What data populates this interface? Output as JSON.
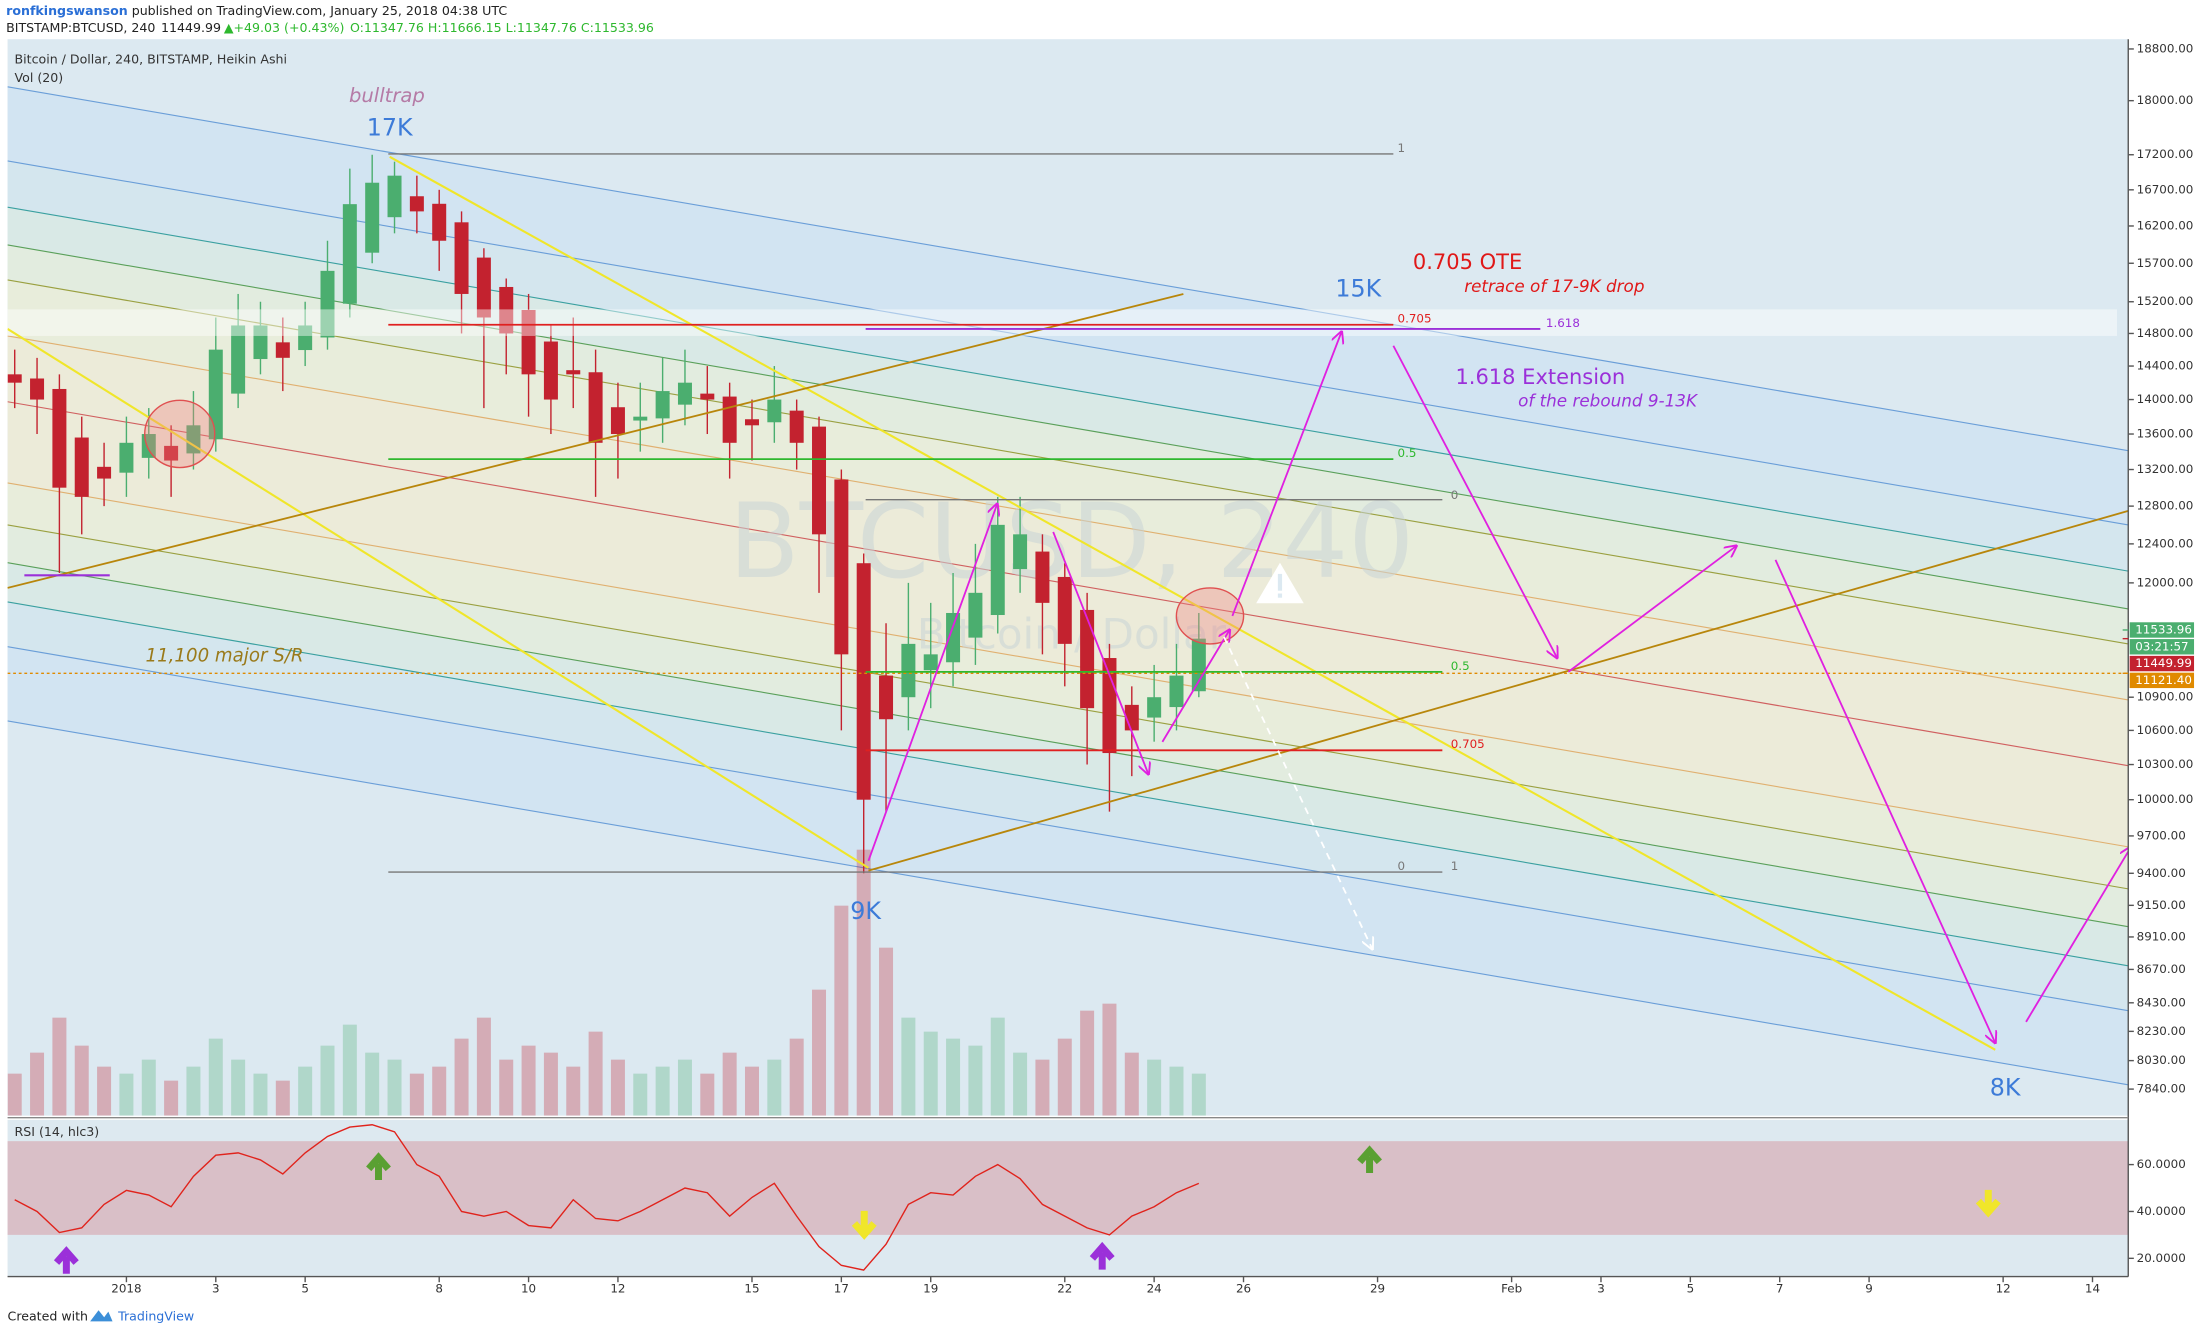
{
  "header": {
    "author": "ronfkingswanson",
    "published": " published on TradingView.com, January 25, 2018 04:38 UTC",
    "symbol": "BITSTAMP:BTCUSD, 240",
    "last": "11449.99",
    "arrow": "▲",
    "change": "+49.03 (+0.43%)",
    "ohlc": "O:11347.76 H:11666.15 L:11347.76 C:11533.96"
  },
  "legend": {
    "main": "Bitcoin / Dollar, 240, BITSTAMP, Heikin Ashi",
    "volume": "Vol (20)",
    "rsi": "RSI (14, hlc3)"
  },
  "watermark": {
    "symbol": "BTCUSD, 240",
    "name": "Bitcoin / Dollar"
  },
  "annotations": {
    "bulltrap": "bulltrap",
    "k17": "17K",
    "k15": "15K",
    "k9": "9K",
    "k8": "8K",
    "ote": "0.705 OTE",
    "ote_note": "retrace of 17-9K drop",
    "ext": "1.618 Extension",
    "ext_note": "of the rebound 9-13K",
    "sr": "11,100 major S/R"
  },
  "fib_labels": {
    "top_1": "1",
    "top_705": "0.705",
    "ext_1618": "1.618",
    "top_05": "0.5",
    "mid_0": "0",
    "mid_05": "0.5",
    "mid_705": "0.705",
    "low_0": "0",
    "low_1": "1"
  },
  "footer": {
    "created": "Created with",
    "brand": "TradingView"
  },
  "chart_data": {
    "type": "candlestick",
    "log_scale": true,
    "colors": {
      "up": "#4bae6f",
      "down": "#c3222f",
      "rsi": "#e0231c"
    },
    "x": [
      -2.5,
      -2,
      -1.5,
      -1,
      -0.5,
      0,
      0.5,
      1,
      1.5,
      2,
      2.5,
      3,
      3.5,
      4,
      4.5,
      5,
      5.5,
      6,
      6.5,
      7,
      7.5,
      8,
      8.5,
      9,
      9.5,
      10,
      10.5,
      11,
      11.5,
      12,
      12.5,
      13,
      13.5,
      14,
      14.5,
      15,
      15.5,
      16,
      16.5,
      17,
      17.5,
      18,
      18.5,
      19,
      19.5,
      20,
      20.5,
      21,
      21.5,
      22,
      22.5,
      23,
      23.5,
      24
    ],
    "open": [
      14300,
      14250,
      14125,
      13560,
      13230,
      13165,
      13330,
      13465,
      13380,
      13540,
      14070,
      14485,
      14690,
      14595,
      14750,
      15175,
      15840,
      16320,
      16610,
      16505,
      16250,
      15775,
      15390,
      15095,
      14700,
      14350,
      14325,
      13910,
      13755,
      13780,
      13940,
      14070,
      14035,
      13770,
      13735,
      13870,
      13685,
      13090,
      12200,
      11100,
      10900,
      11150,
      11225,
      11460,
      11680,
      12140,
      12320,
      12060,
      11730,
      11265,
      10830,
      10715,
      10810,
      10955
    ],
    "high": [
      14600,
      14500,
      14300,
      13800,
      13500,
      13800,
      13900,
      13700,
      14100,
      15000,
      15300,
      15200,
      15000,
      15200,
      16000,
      17000,
      17200,
      17100,
      16900,
      16700,
      16400,
      15900,
      15500,
      15300,
      14900,
      15000,
      14600,
      14200,
      14200,
      14500,
      14600,
      14400,
      14200,
      14000,
      14400,
      14000,
      13800,
      13200,
      12300,
      11600,
      12000,
      11800,
      12100,
      12400,
      12900,
      12900,
      12500,
      12200,
      11900,
      11400,
      11000,
      11200,
      11400,
      11700
    ],
    "low": [
      13900,
      13600,
      12100,
      12500,
      12800,
      12900,
      13100,
      12900,
      13200,
      13400,
      13900,
      14300,
      14100,
      14400,
      14600,
      15000,
      15700,
      16100,
      16100,
      15600,
      14800,
      13900,
      14300,
      13800,
      13600,
      13900,
      12900,
      13100,
      13400,
      13500,
      13700,
      13600,
      13100,
      13300,
      13500,
      13200,
      11900,
      10600,
      9400,
      9900,
      10600,
      10800,
      11000,
      11200,
      11500,
      11900,
      11300,
      11000,
      10300,
      9900,
      10200,
      10500,
      10600,
      10900
    ],
    "close": [
      14200,
      14000,
      13000,
      12900,
      13100,
      13500,
      13600,
      13300,
      13700,
      14600,
      14900,
      14900,
      14500,
      14900,
      15600,
      16500,
      16800,
      16900,
      16400,
      16000,
      15300,
      15000,
      14800,
      14300,
      14000,
      14300,
      13500,
      13600,
      13800,
      14100,
      14200,
      14000,
      13500,
      13700,
      14000,
      13500,
      12500,
      11300,
      10000,
      10700,
      11400,
      11300,
      11700,
      11900,
      12600,
      12500,
      11800,
      11400,
      10800,
      10400,
      10600,
      10900,
      11100,
      11450
    ],
    "volume": [
      30,
      45,
      70,
      50,
      35,
      30,
      40,
      25,
      35,
      55,
      40,
      30,
      25,
      35,
      50,
      65,
      45,
      40,
      30,
      35,
      55,
      70,
      40,
      50,
      45,
      35,
      60,
      40,
      30,
      35,
      40,
      30,
      45,
      35,
      40,
      55,
      90,
      150,
      190,
      120,
      70,
      60,
      55,
      50,
      70,
      45,
      40,
      55,
      75,
      80,
      45,
      40,
      35,
      30
    ],
    "rsi": [
      45,
      40,
      31,
      33,
      43,
      49,
      47,
      42,
      55,
      64,
      65,
      62,
      56,
      65,
      72,
      76,
      77,
      74,
      60,
      55,
      40,
      38,
      40,
      34,
      33,
      45,
      37,
      36,
      40,
      45,
      50,
      48,
      38,
      46,
      52,
      38,
      25,
      17,
      15,
      26,
      43,
      48,
      47,
      55,
      60,
      54,
      43,
      38,
      33,
      30,
      38,
      42,
      48,
      52
    ],
    "xlim": [
      -2.66,
      44.8
    ],
    "xticks": [
      {
        "value": 0,
        "label": "2018"
      },
      {
        "value": 2,
        "label": "3"
      },
      {
        "value": 4,
        "label": "5"
      },
      {
        "value": 7,
        "label": "8"
      },
      {
        "value": 9,
        "label": "10"
      },
      {
        "value": 11,
        "label": "12"
      },
      {
        "value": 14,
        "label": "15"
      },
      {
        "value": 16,
        "label": "17"
      },
      {
        "value": 18,
        "label": "19"
      },
      {
        "value": 21,
        "label": "22"
      },
      {
        "value": 23,
        "label": "24"
      },
      {
        "value": 25,
        "label": "26"
      },
      {
        "value": 28,
        "label": "29"
      },
      {
        "value": 31,
        "label": "Feb"
      },
      {
        "value": 33,
        "label": "3"
      },
      {
        "value": 35,
        "label": "5"
      },
      {
        "value": 37,
        "label": "7"
      },
      {
        "value": 39,
        "label": "9"
      },
      {
        "value": 42,
        "label": "12"
      },
      {
        "value": 44,
        "label": "14"
      }
    ],
    "ylim": [
      7667,
      18955
    ],
    "yticks": [
      {
        "value": 18800,
        "label": "18800.00"
      },
      {
        "value": 18000,
        "label": "18000.00"
      },
      {
        "value": 17200,
        "label": "17200.00"
      },
      {
        "value": 16700,
        "label": "16700.00"
      },
      {
        "value": 16200,
        "label": "16200.00"
      },
      {
        "value": 15700,
        "label": "15700.00"
      },
      {
        "value": 15200,
        "label": "15200.00"
      },
      {
        "value": 14800,
        "label": "14800.00"
      },
      {
        "value": 14400,
        "label": "14400.00"
      },
      {
        "value": 14000,
        "label": "14000.00"
      },
      {
        "value": 13600,
        "label": "13600.00"
      },
      {
        "value": 13200,
        "label": "13200.00"
      },
      {
        "value": 12800,
        "label": "12800.00"
      },
      {
        "value": 12400,
        "label": "12400.00"
      },
      {
        "value": 12000,
        "label": "12000.00"
      },
      {
        "value": 10900,
        "label": "10900.00"
      },
      {
        "value": 10600,
        "label": "10600.00"
      },
      {
        "value": 10300,
        "label": "10300.00"
      },
      {
        "value": 10000,
        "label": "10000.00"
      },
      {
        "value": 9700,
        "label": "9700.00"
      },
      {
        "value": 9400,
        "label": "9400.00"
      },
      {
        "value": 9150,
        "label": "9150.00"
      },
      {
        "value": 8910,
        "label": "8910.00"
      },
      {
        "value": 8670,
        "label": "8670.00"
      },
      {
        "value": 8430,
        "label": "8430.00"
      },
      {
        "value": 8230,
        "label": "8230.00"
      },
      {
        "value": 8030,
        "label": "8030.00"
      },
      {
        "value": 7840,
        "label": "7840.00"
      }
    ],
    "rsi_lim": [
      12.2,
      79.1
    ],
    "rsi_ticks": [
      {
        "value": 60,
        "label": "60.0000"
      },
      {
        "value": 40,
        "label": "40.0000"
      },
      {
        "value": 20,
        "label": "20.0000"
      }
    ],
    "rsi_band": [
      30,
      70
    ],
    "sr_line": 11121.4,
    "price_badges": [
      {
        "value": 11533.96,
        "label": "11533.96",
        "color": "#4bae6f"
      },
      {
        "value": 11449.99,
        "label": "11449.99",
        "color": "#c3222f"
      },
      {
        "value": 11121.4,
        "label": "11121.40",
        "color": "#e08a00"
      }
    ],
    "countdown": "03:21:57"
  }
}
